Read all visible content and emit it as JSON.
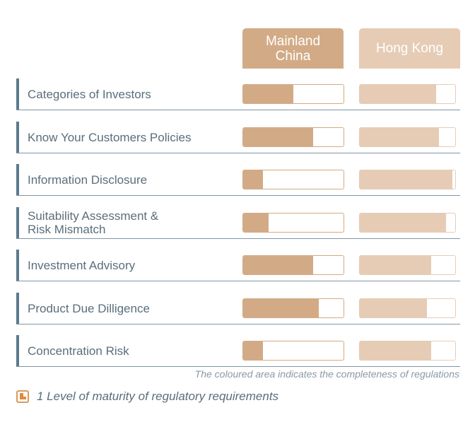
{
  "columns": {
    "china": "Mainland\nChina",
    "hk": "Hong Kong"
  },
  "colors": {
    "china": "#d2ab86",
    "hk": "#e6ccb5",
    "label_bar": "#5d7a8c",
    "text": "#5a6e7c"
  },
  "chart_data": {
    "type": "bar",
    "categories": [
      "Categories of Investors",
      "Know Your Customers Policies",
      "Information Disclosure",
      "Suitability Assessment &\nRisk Mismatch",
      "Investment Advisory",
      "Product Due Dilligence",
      "Concentration Risk"
    ],
    "series": [
      {
        "name": "Mainland\nChina",
        "values": [
          0.5,
          0.7,
          0.2,
          0.25,
          0.7,
          0.75,
          0.2
        ]
      },
      {
        "name": "Hong Kong",
        "values": [
          0.8,
          0.83,
          0.97,
          0.9,
          0.75,
          0.7,
          0.75
        ]
      }
    ],
    "ylim": [
      0,
      1
    ]
  },
  "note": "The coloured area indicates  the completeness of regulations",
  "legend": {
    "icon": "maturity-level-icon",
    "text": "1 Level of maturity of regulatory requirements"
  }
}
